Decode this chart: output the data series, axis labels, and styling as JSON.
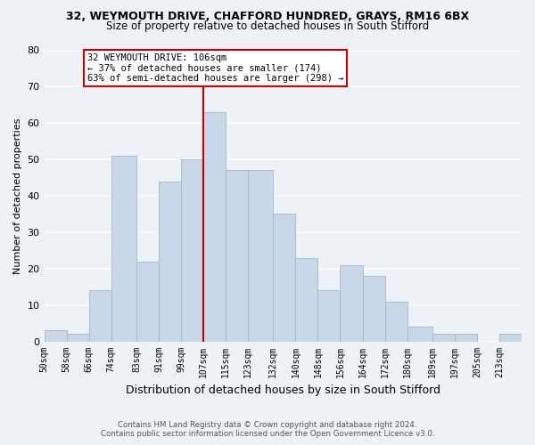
{
  "title1": "32, WEYMOUTH DRIVE, CHAFFORD HUNDRED, GRAYS, RM16 6BX",
  "title2": "Size of property relative to detached houses in South Stifford",
  "xlabel": "Distribution of detached houses by size in South Stifford",
  "ylabel": "Number of detached properties",
  "bar_color": "#c8d8e8",
  "bar_edge_color": "#a8bdd0",
  "bins": [
    50,
    58,
    66,
    74,
    83,
    91,
    99,
    107,
    115,
    123,
    132,
    140,
    148,
    156,
    164,
    172,
    180,
    189,
    197,
    205,
    213
  ],
  "bin_labels": [
    "50sqm",
    "58sqm",
    "66sqm",
    "74sqm",
    "83sqm",
    "91sqm",
    "99sqm",
    "107sqm",
    "115sqm",
    "123sqm",
    "132sqm",
    "140sqm",
    "148sqm",
    "156sqm",
    "164sqm",
    "172sqm",
    "180sqm",
    "189sqm",
    "197sqm",
    "205sqm",
    "213sqm"
  ],
  "heights": [
    3,
    2,
    14,
    51,
    22,
    44,
    50,
    63,
    47,
    47,
    35,
    23,
    14,
    21,
    18,
    11,
    4,
    2,
    2,
    0,
    2
  ],
  "vline_x": 107,
  "vline_color": "#cc0000",
  "ylim": [
    0,
    80
  ],
  "yticks": [
    0,
    10,
    20,
    30,
    40,
    50,
    60,
    70,
    80
  ],
  "annotation_title": "32 WEYMOUTH DRIVE: 106sqm",
  "annotation_line1": "← 37% of detached houses are smaller (174)",
  "annotation_line2": "63% of semi-detached houses are larger (298) →",
  "annotation_box_color": "#ffffff",
  "annotation_box_edgecolor": "#cc0000",
  "footer1": "Contains HM Land Registry data © Crown copyright and database right 2024.",
  "footer2": "Contains public sector information licensed under the Open Government Licence v3.0.",
  "background_color": "#eef2f7",
  "grid_color": "#ffffff"
}
